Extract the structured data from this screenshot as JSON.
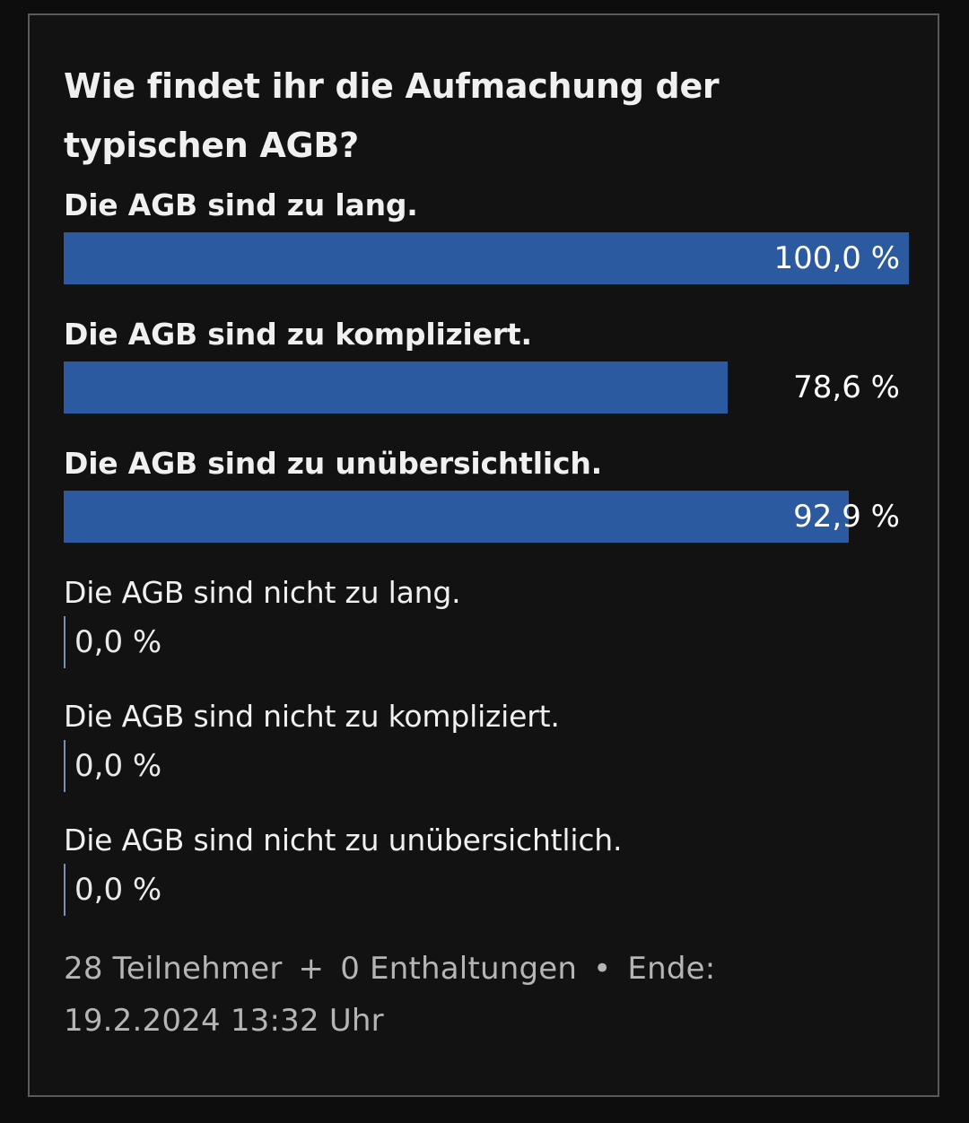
{
  "poll": {
    "title": "Wie findet ihr die Aufmachung der typischen AGB?",
    "options": [
      {
        "label": "Die AGB sind zu lang.",
        "percent": 100.0,
        "value_label": "100,0 %",
        "selected": true
      },
      {
        "label": "Die AGB sind zu kompliziert.",
        "percent": 78.6,
        "value_label": "78,6 %",
        "selected": true
      },
      {
        "label": "Die AGB sind zu unübersichtlich.",
        "percent": 92.9,
        "value_label": "92,9 %",
        "selected": true
      },
      {
        "label": "Die AGB sind nicht zu lang.",
        "percent": 0.0,
        "value_label": "0,0 %",
        "selected": false
      },
      {
        "label": "Die AGB sind nicht zu kompliziert.",
        "percent": 0.0,
        "value_label": "0,0 %",
        "selected": false
      },
      {
        "label": "Die AGB sind nicht zu unübersichtlich.",
        "percent": 0.0,
        "value_label": "0,0 %",
        "selected": false
      }
    ],
    "footer": {
      "participants": "28 Teilnehmer",
      "plus_sep": "+",
      "abstentions": "0 Enthaltungen",
      "dot_sep": "•",
      "end_label": "Ende:",
      "end_datetime": "19.2.2024 13:32 Uhr"
    }
  },
  "colors": {
    "bar": "#2c5aa0",
    "background": "#121212",
    "border": "#5a5a5a"
  }
}
